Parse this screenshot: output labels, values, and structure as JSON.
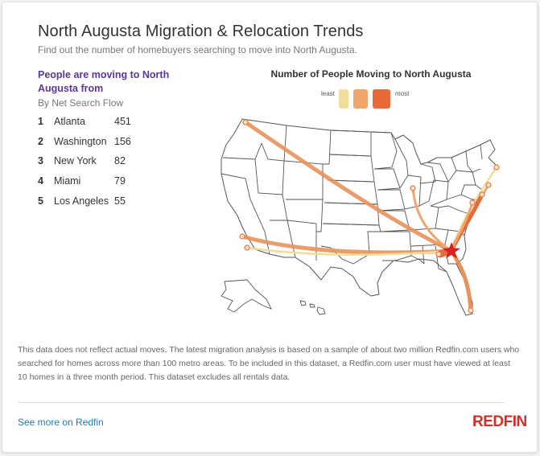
{
  "header": {
    "title": "North Augusta Migration & Relocation Trends",
    "subtitle": "Find out the number of homebuyers searching to move into North Augusta."
  },
  "origins": {
    "heading": "People are moving to North Augusta from",
    "subheading": "By Net Search Flow",
    "items": [
      {
        "rank": "1",
        "city": "Atlanta",
        "value": "451"
      },
      {
        "rank": "2",
        "city": "Washington",
        "value": "156"
      },
      {
        "rank": "3",
        "city": "New York",
        "value": "82"
      },
      {
        "rank": "4",
        "city": "Miami",
        "value": "79"
      },
      {
        "rank": "5",
        "city": "Los Angeles",
        "value": "55"
      }
    ]
  },
  "map": {
    "title": "Number of People Moving to North Augusta",
    "legend": {
      "least_label": "least",
      "most_label": "most",
      "colors": [
        "#f2dc9a",
        "#eea66d",
        "#e86a3b"
      ]
    },
    "destination_marker": "red-star-icon",
    "flow_color": "#e8915a",
    "state_fill": "#ffffff",
    "state_stroke": "#555555"
  },
  "footer": {
    "note": "This data does not reflect actual moves. The latest migration analysis is based on a sample of about two million Redfin.com users who searched for homes across more than 100 metro areas. To be included in this dataset, a Redfin.com user must have viewed at least 10 homes in a three month period. This dataset excludes all rentals data.",
    "link_label": "See more on Redfin",
    "logo_text": "REDFIN",
    "link_color": "#1d7cb0",
    "logo_color": "#d0302a"
  }
}
